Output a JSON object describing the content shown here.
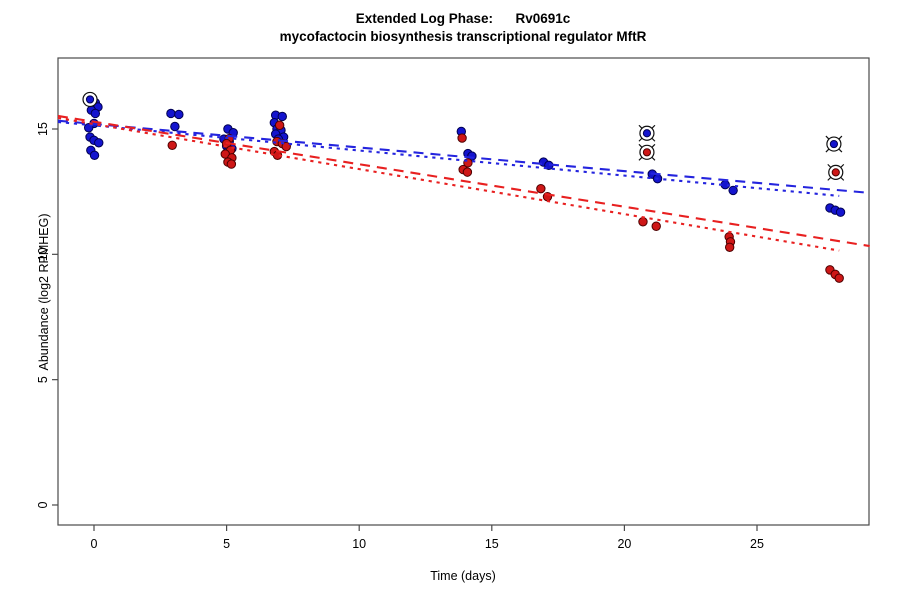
{
  "title": {
    "line1": "Extended Log Phase:      Rv0691c",
    "line2": "mycofactocin biosynthesis transcriptional regulator MftR"
  },
  "chart_data": {
    "type": "scatter",
    "xlabel": "Time  (days)",
    "ylabel": "Abundance  (log2 RPMHEG)",
    "x_ticks": [
      0,
      5,
      10,
      15,
      20,
      25
    ],
    "y_ticks": [
      0,
      5,
      10,
      15
    ],
    "x_tick_labels": [
      "0",
      "5",
      "10",
      "15",
      "20",
      "25"
    ],
    "y_tick_labels": [
      "0",
      "5",
      "10",
      "15"
    ],
    "xlim": [
      -1.36,
      29.25
    ],
    "ylim": [
      -0.8,
      17.8
    ],
    "grid": false,
    "legend": null,
    "colors": {
      "blue_point": "#1414CE",
      "blue_edge": "#000050",
      "red_point": "#CE1717",
      "red_edge": "#4D0000",
      "blue_line": "#2424DE",
      "red_line": "#E82020",
      "axis": "#4a4a4a",
      "outlier_ring": "#111111"
    },
    "series": [
      {
        "name": "blue",
        "color": "#1414CE",
        "edge": "#000050",
        "points": [
          [
            -0.15,
            16.15
          ],
          [
            0.05,
            16.05
          ],
          [
            -0.05,
            15.95
          ],
          [
            0.15,
            15.88
          ],
          [
            -0.1,
            15.75
          ],
          [
            0.05,
            15.62
          ],
          [
            0.0,
            15.22
          ],
          [
            -0.2,
            15.05
          ],
          [
            -0.15,
            14.68
          ],
          [
            0.0,
            14.55
          ],
          [
            0.18,
            14.45
          ],
          [
            -0.12,
            14.15
          ],
          [
            0.02,
            13.95
          ],
          [
            2.9,
            15.62
          ],
          [
            3.2,
            15.58
          ],
          [
            3.05,
            15.1
          ],
          [
            5.05,
            15.0
          ],
          [
            5.25,
            14.85
          ],
          [
            4.9,
            14.6
          ],
          [
            5.1,
            14.5
          ],
          [
            5.0,
            14.32
          ],
          [
            5.2,
            14.22
          ],
          [
            5.05,
            14.1
          ],
          [
            6.85,
            15.55
          ],
          [
            7.1,
            15.5
          ],
          [
            6.8,
            15.25
          ],
          [
            6.9,
            15.0
          ],
          [
            7.05,
            14.95
          ],
          [
            6.85,
            14.8
          ],
          [
            7.15,
            14.68
          ],
          [
            6.95,
            14.6
          ],
          [
            13.85,
            14.9
          ],
          [
            14.1,
            14.02
          ],
          [
            14.25,
            13.92
          ],
          [
            16.95,
            13.68
          ],
          [
            17.15,
            13.55
          ],
          [
            21.05,
            13.2
          ],
          [
            21.25,
            13.02
          ],
          [
            23.8,
            12.78
          ],
          [
            24.1,
            12.55
          ],
          [
            27.75,
            11.85
          ],
          [
            27.95,
            11.76
          ],
          [
            28.15,
            11.68
          ]
        ]
      },
      {
        "name": "red",
        "color": "#CE1717",
        "edge": "#4D0000",
        "points": [
          [
            2.95,
            14.35
          ],
          [
            5.1,
            14.62
          ],
          [
            5.0,
            14.42
          ],
          [
            5.15,
            14.15
          ],
          [
            4.95,
            14.0
          ],
          [
            5.2,
            13.85
          ],
          [
            5.05,
            13.68
          ],
          [
            5.18,
            13.6
          ],
          [
            7.0,
            15.15
          ],
          [
            6.9,
            14.5
          ],
          [
            7.1,
            14.42
          ],
          [
            7.25,
            14.3
          ],
          [
            6.8,
            14.1
          ],
          [
            6.92,
            13.95
          ],
          [
            13.88,
            14.64
          ],
          [
            14.1,
            13.65
          ],
          [
            13.92,
            13.38
          ],
          [
            14.08,
            13.28
          ],
          [
            16.85,
            12.62
          ],
          [
            17.1,
            12.3
          ],
          [
            20.7,
            11.3
          ],
          [
            21.2,
            11.12
          ],
          [
            23.95,
            10.7
          ],
          [
            24.0,
            10.5
          ],
          [
            23.97,
            10.28
          ],
          [
            27.75,
            9.38
          ],
          [
            27.95,
            9.2
          ],
          [
            28.1,
            9.05
          ]
        ]
      }
    ],
    "outliers": [
      {
        "series": "blue",
        "x": 20.85,
        "y": 14.83,
        "cross": true
      },
      {
        "series": "red",
        "x": 20.85,
        "y": 14.07,
        "cross": true
      },
      {
        "series": "blue",
        "x": 27.9,
        "y": 14.4,
        "cross": true
      },
      {
        "series": "red",
        "x": 27.97,
        "y": 13.27,
        "cross": true
      },
      {
        "series": "blue",
        "x": -0.15,
        "y": 16.18,
        "cross": false
      }
    ],
    "trend_lines": [
      {
        "name": "blue-fit-dashed",
        "color": "#2424DE",
        "style": "dash",
        "x1": -1.36,
        "y1": 15.33,
        "x2": 29.25,
        "y2": 12.45
      },
      {
        "name": "blue-fit-dotted",
        "color": "#2424DE",
        "style": "dot",
        "x1": -1.36,
        "y1": 15.28,
        "x2": 28.1,
        "y2": 12.33
      },
      {
        "name": "red-fit-dashed",
        "color": "#E82020",
        "style": "dash",
        "x1": -1.36,
        "y1": 15.52,
        "x2": 29.25,
        "y2": 10.33
      },
      {
        "name": "red-fit-dotted",
        "color": "#E82020",
        "style": "dot",
        "x1": -1.36,
        "y1": 15.44,
        "x2": 28.1,
        "y2": 10.15
      }
    ]
  }
}
